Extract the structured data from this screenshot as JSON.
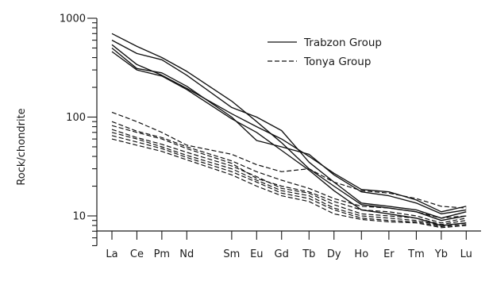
{
  "chart_data": {
    "type": "line",
    "xlabel": "",
    "ylabel": "Rock/chondrite",
    "yscale": "log",
    "ylim": [
      5,
      1000
    ],
    "y_ticks": [
      "1000",
      "100",
      "10"
    ],
    "categories": [
      "La",
      "Ce",
      "Pm",
      "Nd",
      "Sm",
      "Eu",
      "Gd",
      "Tb",
      "Dy",
      "Ho",
      "Er",
      "Tm",
      "Yb",
      "Lu"
    ],
    "category_positions": [
      1,
      2,
      3,
      4,
      5.8,
      6.8,
      7.8,
      8.9,
      9.9,
      11,
      12.1,
      13.2,
      14.2,
      15.2
    ],
    "legend_position": "top-right",
    "legend": [
      {
        "label": "Trabzon Group",
        "style": "solid"
      },
      {
        "label": "Tonya Group",
        "style": "dashed"
      }
    ],
    "series": [
      {
        "group": "Trabzon Group",
        "style": "solid",
        "x": [
          1,
          2,
          3,
          4,
          5.8,
          6.8,
          7.8,
          8.9,
          9.9,
          11,
          12.1,
          13.2,
          14.2,
          15.2
        ],
        "values": [
          700,
          520,
          400,
          290,
          145,
          90,
          55,
          30,
          20,
          13,
          12,
          11,
          9,
          10
        ]
      },
      {
        "group": "Trabzon Group",
        "style": "solid",
        "x": [
          1,
          2,
          3,
          4,
          5.8,
          6.8,
          7.8,
          8.9,
          9.9,
          11,
          12.1,
          13.2,
          14.2,
          15.2
        ],
        "values": [
          600,
          440,
          380,
          265,
          125,
          100,
          73,
          35,
          22,
          13.5,
          12.5,
          11.5,
          9.5,
          11
        ]
      },
      {
        "group": "Trabzon Group",
        "style": "solid",
        "x": [
          1,
          2,
          3,
          4,
          5.8,
          6.8,
          7.8,
          8.9,
          9.9,
          11,
          12.1,
          13.2,
          14.2,
          15.2
        ],
        "values": [
          540,
          340,
          265,
          195,
          108,
          80,
          60,
          40,
          27,
          18.5,
          17.5,
          14.5,
          11,
          12.5
        ]
      },
      {
        "group": "Trabzon Group",
        "style": "solid",
        "x": [
          1,
          2,
          3,
          4,
          5.8,
          6.8,
          7.8,
          8.9,
          9.9,
          11,
          12.1,
          13.2,
          14.2,
          15.2
        ],
        "values": [
          500,
          310,
          280,
          205,
          100,
          58,
          50,
          42,
          26,
          17.5,
          16,
          13.5,
          10.5,
          11.5
        ]
      },
      {
        "group": "Trabzon Group",
        "style": "solid",
        "x": [
          1,
          2,
          3,
          4,
          5.8,
          6.8,
          7.8,
          8.9,
          9.9,
          11,
          12.1,
          13.2,
          14.2,
          15.2
        ],
        "values": [
          460,
          300,
          260,
          190,
          96,
          70,
          46,
          29,
          18,
          11.5,
          10.5,
          9.5,
          8,
          8.5
        ]
      },
      {
        "group": "Tonya Group",
        "style": "dashed",
        "x": [
          1,
          2,
          3,
          4,
          5.8,
          6.8,
          7.8,
          8.9,
          9.9,
          11,
          12.1,
          13.2,
          14.2,
          15.2
        ],
        "values": [
          112,
          90,
          70,
          52,
          42,
          33,
          28,
          30,
          22,
          18,
          17,
          15,
          12.5,
          12
        ]
      },
      {
        "group": "Tonya Group",
        "style": "dashed",
        "x": [
          1,
          2,
          3,
          4,
          5.8,
          6.8,
          7.8,
          8.9,
          9.9,
          11,
          12.1,
          13.2,
          14.2,
          15.2
        ],
        "values": [
          90,
          72,
          62,
          50,
          36,
          28,
          23,
          19,
          15,
          12.5,
          12,
          11,
          9.5,
          10
        ]
      },
      {
        "group": "Tonya Group",
        "style": "dashed",
        "x": [
          1,
          2,
          3,
          4,
          5.8,
          6.8,
          7.8,
          8.9,
          9.9,
          11,
          12.1,
          13.2,
          14.2,
          15.2
        ],
        "values": [
          82,
          70,
          60,
          48,
          34,
          24,
          20,
          17.5,
          14,
          11.5,
          11,
          10,
          8.5,
          9.5
        ]
      },
      {
        "group": "Tonya Group",
        "style": "dashed",
        "x": [
          1,
          2,
          3,
          4,
          5.8,
          6.8,
          7.8,
          8.9,
          9.9,
          11,
          12.1,
          13.2,
          14.2,
          15.2
        ],
        "values": [
          75,
          62,
          53,
          44,
          32,
          25,
          19,
          17,
          13,
          10.5,
          10,
          9.5,
          8.2,
          9
        ]
      },
      {
        "group": "Tonya Group",
        "style": "dashed",
        "x": [
          1,
          2,
          3,
          4,
          5.8,
          6.8,
          7.8,
          8.9,
          9.9,
          11,
          12.1,
          13.2,
          14.2,
          15.2
        ],
        "values": [
          70,
          60,
          50,
          41,
          30,
          23,
          18,
          16,
          12,
          10,
          9.5,
          9,
          8,
          8.5
        ]
      },
      {
        "group": "Tonya Group",
        "style": "dashed",
        "x": [
          1,
          2,
          3,
          4,
          5.8,
          6.8,
          7.8,
          8.9,
          9.9,
          11,
          12.1,
          13.2,
          14.2,
          15.2
        ],
        "values": [
          65,
          56,
          48,
          39,
          28,
          22,
          17,
          15,
          11.5,
          9.5,
          9,
          8.7,
          7.8,
          8.2
        ]
      },
      {
        "group": "Tonya Group",
        "style": "dashed",
        "x": [
          1,
          2,
          3,
          4,
          5.8,
          6.8,
          7.8,
          8.9,
          9.9,
          11,
          12.1,
          13.2,
          14.2,
          15.2
        ],
        "values": [
          60,
          52,
          45,
          37,
          26,
          20,
          16,
          14,
          10.5,
          9.2,
          8.7,
          8.5,
          7.6,
          8
        ]
      }
    ]
  }
}
